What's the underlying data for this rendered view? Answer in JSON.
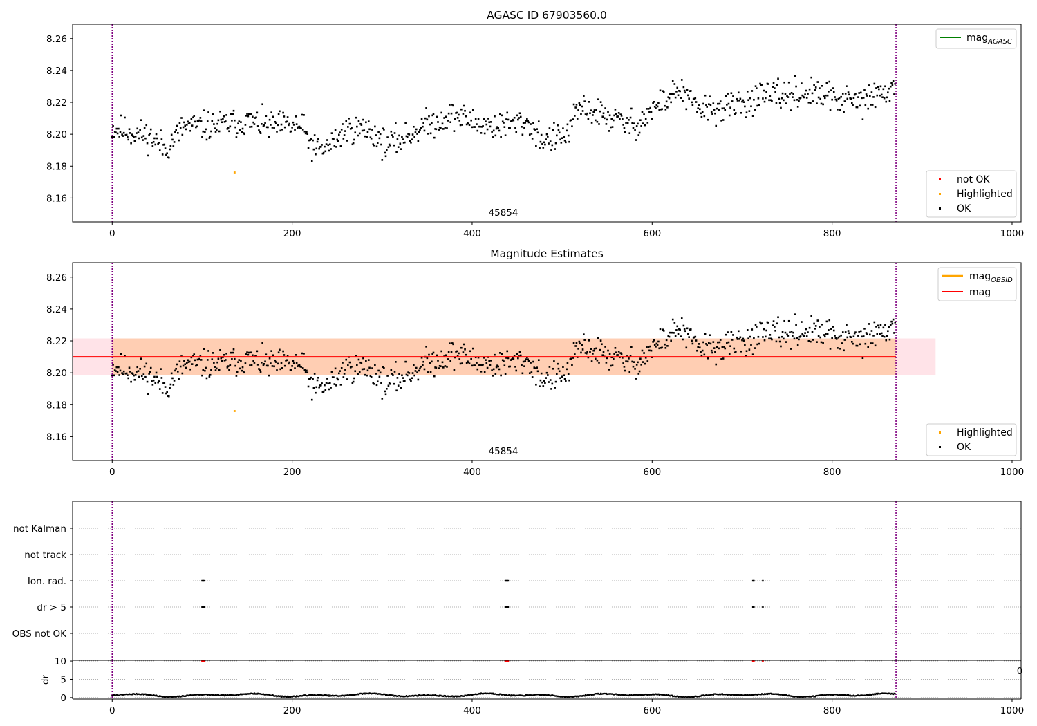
{
  "chart_data": [
    {
      "type": "scatter",
      "title": "AGASC ID 67903560.0",
      "xlim": [
        -44,
        1010
      ],
      "ylim": [
        8.145,
        8.269
      ],
      "xticks": [
        0,
        200,
        400,
        600,
        800,
        1000
      ],
      "yticks": [
        8.16,
        8.18,
        8.2,
        8.22,
        8.24,
        8.26
      ],
      "vlines": [
        0,
        871
      ],
      "obsid_label": "45854",
      "obsid_label_x": 435,
      "lines_legend": [
        {
          "label": "mag",
          "sub": "AGASC",
          "color": "#008000"
        }
      ],
      "points_legend": [
        {
          "label": "not OK",
          "color": "#ff0000"
        },
        {
          "label": "Highlighted",
          "color": "#ffa500"
        },
        {
          "label": "OK",
          "color": "#000000"
        }
      ],
      "highlighted_points": [
        {
          "x": 136,
          "y": 8.176
        }
      ],
      "ok_points": {
        "n": 871,
        "seed": 11,
        "noise": 0.0045,
        "trend_knots": [
          [
            0,
            8.204
          ],
          [
            40,
            8.199
          ],
          [
            60,
            8.191
          ],
          [
            80,
            8.205
          ],
          [
            110,
            8.205
          ],
          [
            150,
            8.208
          ],
          [
            175,
            8.205
          ],
          [
            210,
            8.205
          ],
          [
            225,
            8.19
          ],
          [
            240,
            8.192
          ],
          [
            260,
            8.203
          ],
          [
            285,
            8.203
          ],
          [
            305,
            8.193
          ],
          [
            325,
            8.198
          ],
          [
            345,
            8.205
          ],
          [
            380,
            8.212
          ],
          [
            410,
            8.206
          ],
          [
            430,
            8.205
          ],
          [
            460,
            8.208
          ],
          [
            480,
            8.196
          ],
          [
            505,
            8.199
          ],
          [
            520,
            8.217
          ],
          [
            545,
            8.212
          ],
          [
            580,
            8.205
          ],
          [
            600,
            8.215
          ],
          [
            630,
            8.228
          ],
          [
            650,
            8.216
          ],
          [
            680,
            8.216
          ],
          [
            720,
            8.223
          ],
          [
            770,
            8.226
          ],
          [
            830,
            8.22
          ],
          [
            871,
            8.229
          ]
        ]
      }
    },
    {
      "type": "scatter",
      "title": "Magnitude Estimates",
      "xlim": [
        -44,
        1010
      ],
      "ylim": [
        8.145,
        8.269
      ],
      "xticks": [
        0,
        200,
        400,
        600,
        800,
        1000
      ],
      "yticks": [
        8.16,
        8.18,
        8.2,
        8.22,
        8.24,
        8.26
      ],
      "vlines": [
        0,
        871
      ],
      "obsid_label": "45854",
      "obsid_label_x": 435,
      "lines_legend": [
        {
          "label": "mag",
          "sub": "OBSID",
          "color": "#ffa500"
        },
        {
          "label": "mag",
          "sub": "",
          "color": "#ff0000"
        }
      ],
      "points_legend": [
        {
          "label": "Highlighted",
          "color": "#ffa500"
        },
        {
          "label": "OK",
          "color": "#000000"
        }
      ],
      "mag_line": {
        "y": 8.21,
        "x0": -44,
        "x1": 871
      },
      "mag_band": {
        "y0": 8.1985,
        "y1": 8.2215,
        "x0": -44,
        "x1": 915
      },
      "obsid_band": {
        "y0": 8.1985,
        "y1": 8.2215,
        "x0": 0,
        "x1": 871
      }
    },
    {
      "type": "scatter",
      "title": "",
      "xlim": [
        -44,
        1010
      ],
      "categories": [
        "not Kalman",
        "not track",
        "Ion. rad.",
        "dr > 5",
        "OBS not OK"
      ],
      "flag_x": [
        100,
        101,
        102,
        437,
        438,
        439,
        440,
        712,
        713,
        723
      ],
      "flag_rows": [
        "Ion. rad.",
        "dr > 5"
      ],
      "vlines": [
        0,
        871
      ]
    },
    {
      "type": "scatter",
      "title": "",
      "ylabel": "dr",
      "xlim": [
        -44,
        1010
      ],
      "ylim": [
        -0.4,
        10.2
      ],
      "xticks": [
        0,
        200,
        400,
        600,
        800,
        1000
      ],
      "yticks": [
        0,
        5,
        10
      ],
      "clipped_tick_text": "0",
      "flag_x": [
        100,
        101,
        102,
        437,
        438,
        439,
        440,
        712,
        713,
        723
      ],
      "flag_y": 10,
      "vlines": [
        0,
        871
      ]
    }
  ]
}
